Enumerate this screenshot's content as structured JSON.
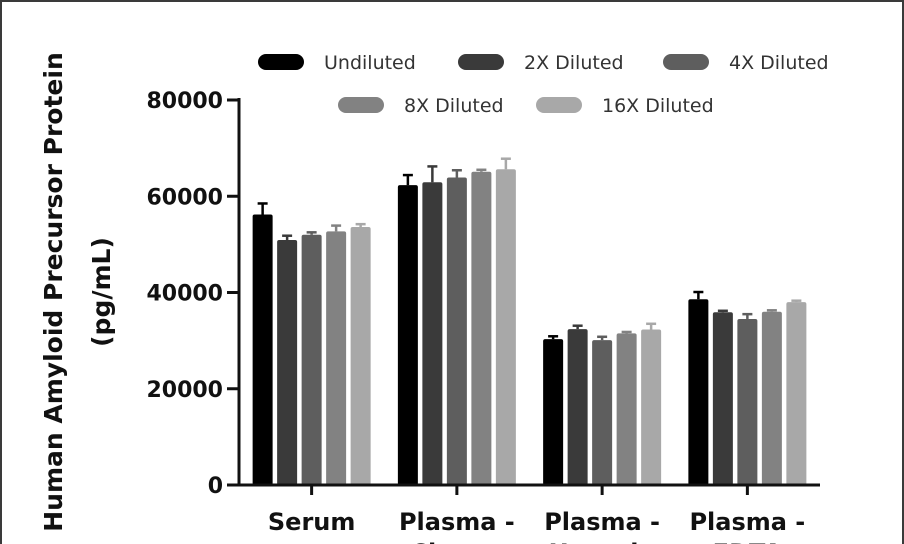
{
  "chart_data": {
    "type": "bar",
    "title": "",
    "ylabel_line1": "Human Amyloid Precursor Protein",
    "ylabel_line2": "(pg/mL)",
    "ylim": [
      0,
      80000
    ],
    "yticks": [
      "0",
      "20000",
      "40000",
      "60000",
      "80000"
    ],
    "ytick_values": [
      0,
      20000,
      40000,
      60000,
      80000
    ],
    "categories": [
      "Serum",
      "Plasma -",
      "Plasma -",
      "Plasma -"
    ],
    "categories_line2": [
      "",
      "Citrate",
      "Heparin",
      "EDTA"
    ],
    "legend_position": "top",
    "series": [
      {
        "name": "Undiluted",
        "color": "#000000",
        "values": [
          56200,
          62300,
          30300,
          38600
        ],
        "errors": [
          2300,
          2100,
          600,
          1500
        ]
      },
      {
        "name": "2X Diluted",
        "color": "#3a3a3a",
        "values": [
          50900,
          62900,
          32400,
          35900
        ],
        "errors": [
          900,
          3300,
          700,
          300
        ]
      },
      {
        "name": "4X Diluted",
        "color": "#5e5e5e",
        "values": [
          52000,
          63900,
          30100,
          34500
        ],
        "errors": [
          500,
          1500,
          700,
          1000
        ]
      },
      {
        "name": "8X Diluted",
        "color": "#828282",
        "values": [
          52700,
          65100,
          31500,
          36000
        ],
        "errors": [
          1200,
          400,
          300,
          300
        ]
      },
      {
        "name": "16X Diluted",
        "color": "#a8a8a8",
        "values": [
          53600,
          65600,
          32300,
          38000
        ],
        "errors": [
          600,
          2200,
          1200,
          300
        ]
      }
    ]
  }
}
